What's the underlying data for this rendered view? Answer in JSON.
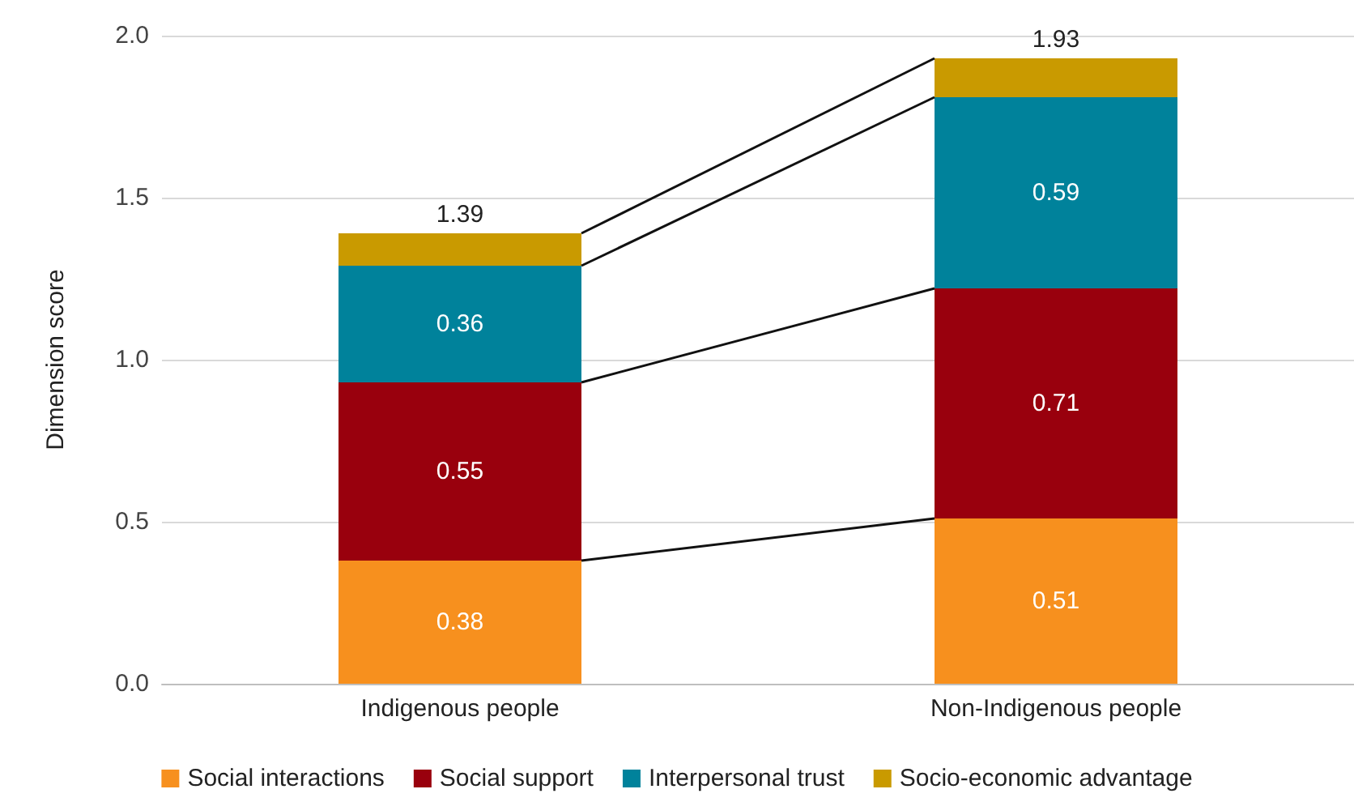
{
  "chart_data": {
    "type": "bar",
    "stacked": true,
    "ylabel": "Dimension score",
    "categories": [
      "Indigenous people",
      "Non-Indigenous people"
    ],
    "series": [
      {
        "name": "Social interactions",
        "color": "#f7901e",
        "values": [
          0.38,
          0.51
        ],
        "value_labels": [
          "0.38",
          "0.51"
        ]
      },
      {
        "name": "Social support",
        "color": "#99000d",
        "values": [
          0.55,
          0.71
        ],
        "value_labels": [
          "0.55",
          "0.71"
        ]
      },
      {
        "name": "Interpersonal trust",
        "color": "#00829b",
        "values": [
          0.36,
          0.59
        ],
        "value_labels": [
          "0.36",
          "0.59"
        ]
      },
      {
        "name": "Socio-economic advantage",
        "color": "#c99a00",
        "values": [
          0.1,
          0.12
        ],
        "value_labels": [
          null,
          null
        ]
      }
    ],
    "totals": [
      "1.39",
      "1.93"
    ],
    "ylim": [
      0,
      2
    ],
    "yticks": [
      {
        "value": 0,
        "label": "0.0"
      },
      {
        "value": 0.5,
        "label": "0.5"
      },
      {
        "value": 1,
        "label": "1.0"
      },
      {
        "value": 1.5,
        "label": "1.5"
      },
      {
        "value": 2,
        "label": "2.0"
      }
    ],
    "grid": "y",
    "legend": "bottom"
  }
}
